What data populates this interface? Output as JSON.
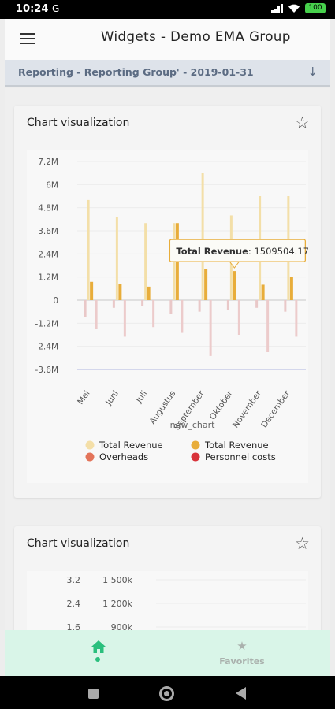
{
  "status_bar": {
    "time": "10:24",
    "carrier_icon": "G",
    "battery": "100"
  },
  "app_bar": {
    "title": "Widgets - Demo EMA Group",
    "menu_icon": "hamburger-icon"
  },
  "report_selector": {
    "label": "Reporting - Reporting Group' - 2019-01-31",
    "icon": "arrow-down-icon"
  },
  "cards": [
    {
      "title": "Chart visualization",
      "star_icon": "star-outline-icon"
    },
    {
      "title": "Chart visualization",
      "star_icon": "star-outline-icon"
    }
  ],
  "chart_data": [
    {
      "type": "bar",
      "xlabel": "new_chart",
      "ylabel": "",
      "categories": [
        "Mei",
        "Juni",
        "Juli",
        "Augustus",
        "September",
        "Oktober",
        "November",
        "December"
      ],
      "y_ticks": [
        "7.2M",
        "6M",
        "4.8M",
        "3.6M",
        "2.4M",
        "1.2M",
        "0",
        "-1.2M",
        "-2.4M",
        "-3.6M"
      ],
      "ylim": [
        -3600000,
        7200000
      ],
      "series": [
        {
          "name": "Total Revenue",
          "color": "#f3dfa8",
          "values": [
            5200000,
            4300000,
            4000000,
            4000000,
            6600000,
            4400000,
            5400000,
            5400000
          ]
        },
        {
          "name": "Total Revenue",
          "color": "#e8ad3a",
          "values": [
            950000,
            850000,
            700000,
            4000000,
            1600000,
            1509504.17,
            800000,
            1200000
          ]
        },
        {
          "name": "Overheads",
          "color": "#e9c8c8",
          "values": [
            -900000,
            -400000,
            -300000,
            -700000,
            -600000,
            -500000,
            -400000,
            -600000
          ]
        },
        {
          "name": "Personnel costs",
          "color": "#eccbcb",
          "values": [
            -1500000,
            -1900000,
            -1400000,
            -1700000,
            -2900000,
            -1800000,
            -2700000,
            -1900000
          ]
        }
      ],
      "legend": [
        {
          "label": "Total Revenue",
          "color": "#f4dfa8"
        },
        {
          "label": "Total Revenue",
          "color": "#e8ad3a"
        },
        {
          "label": "Overheads",
          "color": "#e3745a"
        },
        {
          "label": "Personnel costs",
          "color": "#d8333b"
        }
      ],
      "legend_position": "bottom",
      "grid": true,
      "tooltip": {
        "series": "Total Revenue",
        "category": "Oktober",
        "label": "Total Revenue",
        "value": "1509504.17"
      }
    },
    {
      "type": "bar",
      "y_ticks_left": [
        "3.2",
        "2.4",
        "1.6"
      ],
      "y_ticks_right": [
        "1 500k",
        "1 200k",
        "900k"
      ],
      "grid": true
    }
  ],
  "bottom_nav": {
    "home": {
      "icon": "home-icon",
      "active": true,
      "color": "#2abf7d"
    },
    "favorites": {
      "icon": "star-icon",
      "label": "Favorites"
    }
  }
}
